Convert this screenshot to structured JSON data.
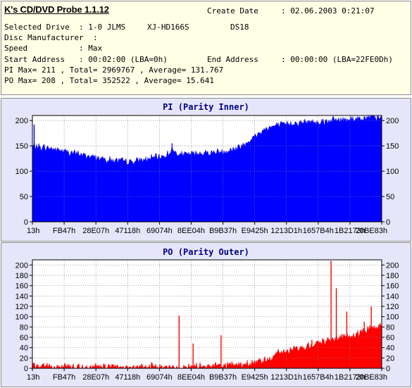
{
  "header": {
    "app_title": "K's CD/DVD Probe 1.1.12",
    "create_date_label": "Create Date",
    "create_date_value": ": 02.06.2003 0:21:07",
    "selected_drive_label": "Selected Drive",
    "selected_drive_value": ": 1-0 JLMS",
    "drive_model": "XJ-HD166S",
    "drive_firmware": "DS18",
    "disc_manufacturer_label": "Disc Manufacturer",
    "disc_manufacturer_value": ":",
    "speed_label": "Speed",
    "speed_value": ": Max",
    "start_address_label": "Start Address",
    "start_address_value": ": 00:02:00 (LBA=0h)",
    "end_address_label": "End Address",
    "end_address_value": ": 00:00:00 (LBA=22FE0Dh)",
    "pi_summary": "PI Max= 211 , Total= 2969767 , Average= 131.767",
    "po_summary": "PO Max= 208 , Total= 352522 , Average= 15.641"
  },
  "chart_data": [
    {
      "type": "area",
      "title": "PI (Parity Inner)",
      "color": "#0000ff",
      "ylim": [
        0,
        210
      ],
      "yticks": [
        0,
        50,
        100,
        150,
        200
      ],
      "grid": true,
      "xlabels": [
        "13h",
        "FB47h",
        "28E07h",
        "47118h",
        "69074h",
        "8EE04h",
        "B9B37h",
        "E9425h",
        "1213D1h",
        "1657B4h",
        "1B2173h",
        "20BE83h"
      ],
      "profile": [
        [
          0,
          150
        ],
        [
          0.02,
          148
        ],
        [
          0.06,
          144
        ],
        [
          0.1,
          138
        ],
        [
          0.16,
          130
        ],
        [
          0.22,
          122
        ],
        [
          0.28,
          118
        ],
        [
          0.32,
          122
        ],
        [
          0.36,
          128
        ],
        [
          0.38,
          130
        ],
        [
          0.4,
          142
        ],
        [
          0.42,
          132
        ],
        [
          0.5,
          136
        ],
        [
          0.56,
          140
        ],
        [
          0.6,
          150
        ],
        [
          0.64,
          170
        ],
        [
          0.67,
          185
        ],
        [
          0.7,
          190
        ],
        [
          0.75,
          195
        ],
        [
          0.82,
          198
        ],
        [
          0.9,
          203
        ],
        [
          0.97,
          205
        ],
        [
          1,
          206
        ]
      ],
      "spikes": [
        [
          0.005,
          192
        ],
        [
          0.4,
          155
        ],
        [
          0.62,
          158
        ],
        [
          0.97,
          211
        ]
      ],
      "noise": 9
    },
    {
      "type": "area",
      "title": "PO (Parity Outer)",
      "color": "#ff0000",
      "ylim": [
        0,
        210
      ],
      "yticks": [
        0,
        20,
        40,
        60,
        80,
        100,
        120,
        140,
        160,
        180,
        200
      ],
      "grid": true,
      "xlabels": [
        "13h",
        "FB47h",
        "28E07h",
        "47118h",
        "69074h",
        "8EE04h",
        "B9B37h",
        "E9425h",
        "1213D1h",
        "1657B4h",
        "1B2173h",
        "20BE83h"
      ],
      "profile": [
        [
          0,
          4
        ],
        [
          0.05,
          3
        ],
        [
          0.2,
          2
        ],
        [
          0.4,
          2
        ],
        [
          0.5,
          3
        ],
        [
          0.6,
          6
        ],
        [
          0.66,
          15
        ],
        [
          0.7,
          28
        ],
        [
          0.75,
          38
        ],
        [
          0.8,
          45
        ],
        [
          0.85,
          55
        ],
        [
          0.9,
          62
        ],
        [
          0.95,
          72
        ],
        [
          1,
          85
        ]
      ],
      "spikes": [
        [
          0.005,
          10
        ],
        [
          0.18,
          8
        ],
        [
          0.42,
          102
        ],
        [
          0.46,
          48
        ],
        [
          0.54,
          64
        ],
        [
          0.8,
          55
        ],
        [
          0.855,
          208
        ],
        [
          0.87,
          155
        ],
        [
          0.9,
          110
        ],
        [
          0.95,
          90
        ],
        [
          0.97,
          120
        ]
      ],
      "noise": 10
    }
  ]
}
